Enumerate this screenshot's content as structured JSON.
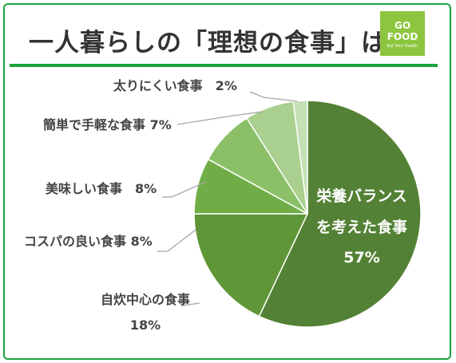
{
  "title": "一人暮らしの「理想の食事」は？",
  "logo": {
    "line1": "GO",
    "line2": "FOOD",
    "line3": "Eat Your Health"
  },
  "colors": {
    "accent": "#1aa33b",
    "slices": [
      "#538135",
      "#5f9637",
      "#70ad47",
      "#8cc068",
      "#a9d08e",
      "#c5e0b4"
    ]
  },
  "chart_data": {
    "type": "pie",
    "title": "一人暮らしの「理想の食事」は？",
    "categories": [
      "栄養バランスを考えた食事",
      "自炊中心の食事",
      "コスパの良い食事",
      "美味しい食事",
      "簡単で手軽な食事",
      "太りにくい食事"
    ],
    "values": [
      57,
      18,
      8,
      8,
      7,
      2
    ],
    "unit": "%",
    "labels": [
      {
        "lines": [
          "栄養バランス",
          "を考えた食事",
          "57%"
        ]
      },
      {
        "lines": [
          "自炊中心の食事",
          "18%"
        ]
      },
      {
        "lines": [
          "コスパの良い食事 8%"
        ]
      },
      {
        "lines": [
          "美味しい食事　8%"
        ]
      },
      {
        "lines": [
          "簡単で手軽な食事 7%"
        ]
      },
      {
        "lines": [
          "太りにくい食事　2%"
        ]
      }
    ]
  }
}
